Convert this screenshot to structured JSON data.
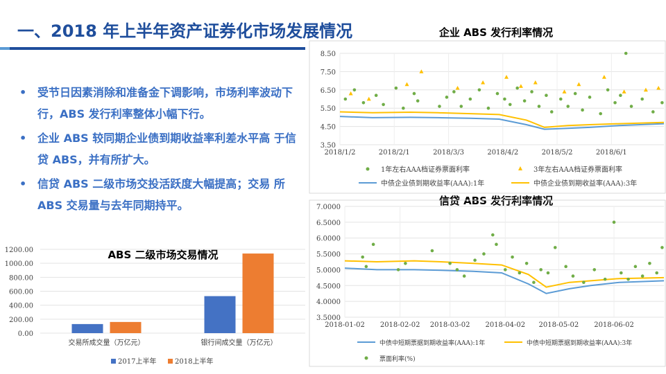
{
  "title": "一、2018 年上半年资产证券化市场发展情况",
  "bullets": [
    "受节日因素消除和准备金下调影响，市场利率波动下行，ABS 发行利率整体小幅下行。",
    "企业 ABS 较同期企业债到期收益率利差水平高 于信贷 ABS，并有所扩大。",
    "信贷 ABS 二级市场交投活跃度大幅提高；交易 所 ABS 交易量与去年同期持平。"
  ],
  "bullet_glyph": "•",
  "colors": {
    "title": "#1f4e9c",
    "bullet": "#3a6fc4",
    "bar2017": "#4472c4",
    "bar2018": "#ed7d31",
    "green": "#70ad47",
    "yellow": "#ffc000",
    "blue": "#5b9bd5"
  },
  "chart_data": [
    {
      "id": "enterprise",
      "type": "line",
      "title": "企业 ABS 发行利率情况",
      "ylim": [
        3.5,
        8.5
      ],
      "yticks": [
        "3.50",
        "4.50",
        "5.50",
        "6.50",
        "7.50",
        "8.50"
      ],
      "xticks": [
        {
          "x": "2018-01-02",
          "label": "2018/1/2"
        },
        {
          "x": "2018-02-01",
          "label": "2018/2/1"
        },
        {
          "x": "2018-03-03",
          "label": "2018/3/3"
        },
        {
          "x": "2018-04-02",
          "label": "2018/4/2"
        },
        {
          "x": "2018-05-02",
          "label": "2018/5/2"
        },
        {
          "x": "2018-06-01",
          "label": "2018/6/1"
        }
      ],
      "xlim": [
        "2018-01-02",
        "2018-06-30"
      ],
      "legend": [
        "1年左右AAA档证券票面利率",
        "3年左右AAA档证券票面利率",
        "中债企业债到期收益率(AAA):1年",
        "中债企业债到期收益率(AAA):3年"
      ],
      "lines": [
        {
          "color": "#5b9bd5",
          "points": [
            [
              "2018-01-02",
              5.05
            ],
            [
              "2018-01-20",
              4.98
            ],
            [
              "2018-02-10",
              5.0
            ],
            [
              "2018-02-25",
              4.98
            ],
            [
              "2018-03-15",
              4.95
            ],
            [
              "2018-03-31",
              4.9
            ],
            [
              "2018-04-15",
              4.6
            ],
            [
              "2018-04-25",
              4.35
            ],
            [
              "2018-05-08",
              4.4
            ],
            [
              "2018-05-20",
              4.45
            ],
            [
              "2018-06-05",
              4.55
            ],
            [
              "2018-06-30",
              4.65
            ]
          ]
        },
        {
          "color": "#ffc000",
          "points": [
            [
              "2018-01-02",
              5.3
            ],
            [
              "2018-01-20",
              5.25
            ],
            [
              "2018-02-10",
              5.28
            ],
            [
              "2018-02-25",
              5.25
            ],
            [
              "2018-03-15",
              5.2
            ],
            [
              "2018-03-31",
              5.15
            ],
            [
              "2018-04-15",
              4.85
            ],
            [
              "2018-04-25",
              4.45
            ],
            [
              "2018-05-08",
              4.55
            ],
            [
              "2018-05-20",
              4.6
            ],
            [
              "2018-06-05",
              4.65
            ],
            [
              "2018-06-30",
              4.72
            ]
          ]
        }
      ],
      "scatter": [
        {
          "marker": "circle",
          "color": "#70ad47",
          "points": [
            [
              "2018-01-05",
              6.0
            ],
            [
              "2018-01-10",
              6.5
            ],
            [
              "2018-01-15",
              5.8
            ],
            [
              "2018-01-22",
              6.2
            ],
            [
              "2018-01-26",
              5.7
            ],
            [
              "2018-02-02",
              6.6
            ],
            [
              "2018-02-06",
              5.5
            ],
            [
              "2018-02-12",
              6.3
            ],
            [
              "2018-02-14",
              5.9
            ],
            [
              "2018-02-26",
              5.6
            ],
            [
              "2018-03-02",
              6.1
            ],
            [
              "2018-03-06",
              6.4
            ],
            [
              "2018-03-10",
              5.6
            ],
            [
              "2018-03-15",
              6.0
            ],
            [
              "2018-03-20",
              6.5
            ],
            [
              "2018-03-25",
              5.5
            ],
            [
              "2018-03-30",
              6.3
            ],
            [
              "2018-04-03",
              6.0
            ],
            [
              "2018-04-06",
              5.7
            ],
            [
              "2018-04-10",
              6.6
            ],
            [
              "2018-04-14",
              5.9
            ],
            [
              "2018-04-18",
              6.4
            ],
            [
              "2018-04-22",
              5.6
            ],
            [
              "2018-04-26",
              6.2
            ],
            [
              "2018-04-29",
              5.3
            ],
            [
              "2018-05-04",
              6.0
            ],
            [
              "2018-05-08",
              5.6
            ],
            [
              "2018-05-12",
              6.3
            ],
            [
              "2018-05-16",
              5.4
            ],
            [
              "2018-05-20",
              6.1
            ],
            [
              "2018-05-26",
              5.2
            ],
            [
              "2018-05-30",
              6.5
            ],
            [
              "2018-06-03",
              5.8
            ],
            [
              "2018-06-06",
              6.2
            ],
            [
              "2018-06-09",
              8.5
            ],
            [
              "2018-06-12",
              5.6
            ],
            [
              "2018-06-18",
              6.0
            ],
            [
              "2018-06-24",
              5.3
            ],
            [
              "2018-06-29",
              5.8
            ]
          ]
        },
        {
          "marker": "triangle",
          "color": "#ffc000",
          "points": [
            [
              "2018-01-08",
              6.3
            ],
            [
              "2018-01-18",
              6.0
            ],
            [
              "2018-02-08",
              6.8
            ],
            [
              "2018-02-16",
              7.5
            ],
            [
              "2018-03-08",
              6.6
            ],
            [
              "2018-03-22",
              6.9
            ],
            [
              "2018-04-04",
              7.2
            ],
            [
              "2018-04-12",
              6.7
            ],
            [
              "2018-04-20",
              6.9
            ],
            [
              "2018-05-06",
              6.4
            ],
            [
              "2018-05-14",
              6.8
            ],
            [
              "2018-05-28",
              7.2
            ],
            [
              "2018-06-08",
              6.4
            ],
            [
              "2018-06-20",
              6.5
            ],
            [
              "2018-06-27",
              6.6
            ]
          ]
        }
      ]
    },
    {
      "id": "credit",
      "type": "line",
      "title": "信贷 ABS 发行利率情况",
      "ylim": [
        3.5,
        7.0
      ],
      "yticks": [
        "3.5000",
        "4.0000",
        "4.5000",
        "5.0000",
        "5.5000",
        "6.0000",
        "6.5000",
        "7.0000"
      ],
      "xticks": [
        {
          "x": "2018-01-02",
          "label": "2018-01-02"
        },
        {
          "x": "2018-02-02",
          "label": "2018-02-02"
        },
        {
          "x": "2018-03-02",
          "label": "2018-03-02"
        },
        {
          "x": "2018-04-02",
          "label": "2018-04-02"
        },
        {
          "x": "2018-05-02",
          "label": "2018-05-02"
        },
        {
          "x": "2018-06-02",
          "label": "2018-06-02"
        }
      ],
      "xlim": [
        "2018-01-02",
        "2018-06-30"
      ],
      "legend": [
        "中债中短期票据到期收益率(AAA):1年",
        "中债中短期票据到期收益率(AAA):3年",
        "票面利率(%)"
      ],
      "lines": [
        {
          "color": "#5b9bd5",
          "points": [
            [
              "2018-01-02",
              5.05
            ],
            [
              "2018-01-20",
              5.0
            ],
            [
              "2018-02-10",
              5.0
            ],
            [
              "2018-02-25",
              4.98
            ],
            [
              "2018-03-15",
              4.95
            ],
            [
              "2018-03-31",
              4.9
            ],
            [
              "2018-04-15",
              4.55
            ],
            [
              "2018-04-25",
              4.25
            ],
            [
              "2018-05-08",
              4.4
            ],
            [
              "2018-05-20",
              4.5
            ],
            [
              "2018-06-05",
              4.6
            ],
            [
              "2018-06-30",
              4.65
            ]
          ]
        },
        {
          "color": "#ffc000",
          "points": [
            [
              "2018-01-02",
              5.28
            ],
            [
              "2018-01-20",
              5.25
            ],
            [
              "2018-02-10",
              5.28
            ],
            [
              "2018-02-25",
              5.25
            ],
            [
              "2018-03-15",
              5.2
            ],
            [
              "2018-03-31",
              5.15
            ],
            [
              "2018-04-15",
              4.85
            ],
            [
              "2018-04-25",
              4.45
            ],
            [
              "2018-05-08",
              4.6
            ],
            [
              "2018-05-20",
              4.65
            ],
            [
              "2018-06-05",
              4.72
            ],
            [
              "2018-06-30",
              4.75
            ]
          ]
        }
      ],
      "scatter": [
        {
          "marker": "circle",
          "color": "#70ad47",
          "points": [
            [
              "2018-01-12",
              5.4
            ],
            [
              "2018-01-14",
              5.1
            ],
            [
              "2018-01-18",
              5.8
            ],
            [
              "2018-02-01",
              5.0
            ],
            [
              "2018-02-05",
              5.2
            ],
            [
              "2018-02-20",
              5.6
            ],
            [
              "2018-03-02",
              5.2
            ],
            [
              "2018-03-06",
              5.0
            ],
            [
              "2018-03-10",
              4.8
            ],
            [
              "2018-03-16",
              5.3
            ],
            [
              "2018-03-21",
              5.5
            ],
            [
              "2018-03-26",
              6.1
            ],
            [
              "2018-03-28",
              5.8
            ],
            [
              "2018-04-02",
              5.0
            ],
            [
              "2018-04-06",
              5.4
            ],
            [
              "2018-04-10",
              4.9
            ],
            [
              "2018-04-14",
              5.2
            ],
            [
              "2018-04-18",
              4.6
            ],
            [
              "2018-04-22",
              5.0
            ],
            [
              "2018-04-26",
              4.9
            ],
            [
              "2018-04-30",
              5.7
            ],
            [
              "2018-05-06",
              5.1
            ],
            [
              "2018-05-10",
              4.8
            ],
            [
              "2018-05-16",
              4.6
            ],
            [
              "2018-05-22",
              5.0
            ],
            [
              "2018-05-28",
              4.7
            ],
            [
              "2018-06-02",
              6.5
            ],
            [
              "2018-06-06",
              4.9
            ],
            [
              "2018-06-10",
              4.7
            ],
            [
              "2018-06-14",
              5.1
            ],
            [
              "2018-06-18",
              4.8
            ],
            [
              "2018-06-22",
              5.2
            ],
            [
              "2018-06-26",
              4.9
            ],
            [
              "2018-06-29",
              5.7
            ]
          ]
        }
      ]
    },
    {
      "id": "trading",
      "type": "bar",
      "title": "ABS 二级市场交易情况",
      "categories": [
        "交易所成交量（万亿元）",
        "银行间成交量（万亿元）"
      ],
      "series": [
        {
          "name": "2017上半年",
          "color": "#4472c4",
          "values": [
            130,
            530
          ]
        },
        {
          "name": "2018上半年",
          "color": "#ed7d31",
          "values": [
            160,
            1140
          ]
        }
      ],
      "ylim": [
        0,
        1200
      ],
      "yticks": [
        "0.00",
        "200.00",
        "400.00",
        "600.00",
        "800.00",
        "1000.00",
        "1200.00"
      ]
    }
  ]
}
